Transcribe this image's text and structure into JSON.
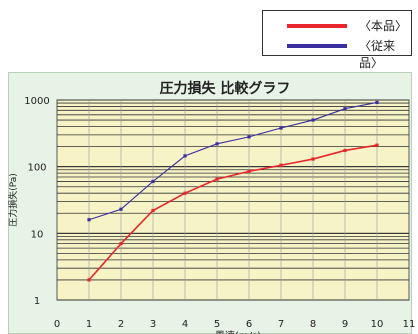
{
  "legend": {
    "items": [
      {
        "label": "〈本品〉",
        "color": "#e8272c"
      },
      {
        "label": "〈従来品〉",
        "color": "#3b2fa0"
      }
    ]
  },
  "chart_data": {
    "type": "line",
    "title": "圧力損失 比較グラフ",
    "xlabel": "風速(m/s)",
    "ylabel": "圧力損失(Pa)",
    "xlim": [
      0,
      11
    ],
    "ylim": [
      1,
      1000
    ],
    "yscale": "log",
    "x_ticks": [
      "0",
      "1",
      "2",
      "3",
      "4",
      "5",
      "6",
      "7",
      "8",
      "9",
      "10",
      "11"
    ],
    "y_ticks": [
      "1",
      "10",
      "100",
      "1000"
    ],
    "grid": true,
    "plot_background": "#f6f3c6",
    "series": [
      {
        "name": "〈本品〉",
        "color": "#e8272c",
        "x": [
          1,
          2,
          3,
          4,
          5,
          6,
          7,
          8,
          9,
          10
        ],
        "y": [
          2,
          7,
          22,
          40,
          65,
          85,
          105,
          130,
          175,
          210
        ]
      },
      {
        "name": "〈従来品〉",
        "color": "#3b2fa0",
        "x": [
          1,
          2,
          3,
          4,
          5,
          6,
          7,
          8,
          9,
          10
        ],
        "y": [
          16,
          23,
          60,
          145,
          220,
          280,
          380,
          500,
          740,
          920
        ]
      }
    ]
  }
}
